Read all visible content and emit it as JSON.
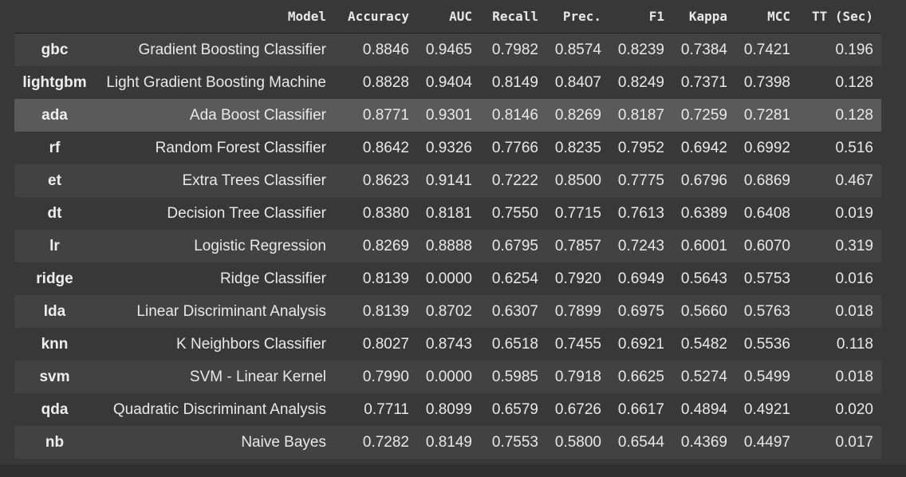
{
  "table": {
    "columns": [
      "Model",
      "Accuracy",
      "AUC",
      "Recall",
      "Prec.",
      "F1",
      "Kappa",
      "MCC",
      "TT (Sec)"
    ],
    "hovered_row": 2,
    "rows": [
      {
        "id": "gbc",
        "model": "Gradient Boosting Classifier",
        "values": [
          "0.8846",
          "0.9465",
          "0.7982",
          "0.8574",
          "0.8239",
          "0.7384",
          "0.7421",
          "0.196"
        ]
      },
      {
        "id": "lightgbm",
        "model": "Light Gradient Boosting Machine",
        "values": [
          "0.8828",
          "0.9404",
          "0.8149",
          "0.8407",
          "0.8249",
          "0.7371",
          "0.7398",
          "0.128"
        ]
      },
      {
        "id": "ada",
        "model": "Ada Boost Classifier",
        "values": [
          "0.8771",
          "0.9301",
          "0.8146",
          "0.8269",
          "0.8187",
          "0.7259",
          "0.7281",
          "0.128"
        ]
      },
      {
        "id": "rf",
        "model": "Random Forest Classifier",
        "values": [
          "0.8642",
          "0.9326",
          "0.7766",
          "0.8235",
          "0.7952",
          "0.6942",
          "0.6992",
          "0.516"
        ]
      },
      {
        "id": "et",
        "model": "Extra Trees Classifier",
        "values": [
          "0.8623",
          "0.9141",
          "0.7222",
          "0.8500",
          "0.7775",
          "0.6796",
          "0.6869",
          "0.467"
        ]
      },
      {
        "id": "dt",
        "model": "Decision Tree Classifier",
        "values": [
          "0.8380",
          "0.8181",
          "0.7550",
          "0.7715",
          "0.7613",
          "0.6389",
          "0.6408",
          "0.019"
        ]
      },
      {
        "id": "lr",
        "model": "Logistic Regression",
        "values": [
          "0.8269",
          "0.8888",
          "0.6795",
          "0.7857",
          "0.7243",
          "0.6001",
          "0.6070",
          "0.319"
        ]
      },
      {
        "id": "ridge",
        "model": "Ridge Classifier",
        "values": [
          "0.8139",
          "0.0000",
          "0.6254",
          "0.7920",
          "0.6949",
          "0.5643",
          "0.5753",
          "0.016"
        ]
      },
      {
        "id": "lda",
        "model": "Linear Discriminant Analysis",
        "values": [
          "0.8139",
          "0.8702",
          "0.6307",
          "0.7899",
          "0.6975",
          "0.5660",
          "0.5763",
          "0.018"
        ]
      },
      {
        "id": "knn",
        "model": "K Neighbors Classifier",
        "values": [
          "0.8027",
          "0.8743",
          "0.6518",
          "0.7455",
          "0.6921",
          "0.5482",
          "0.5536",
          "0.118"
        ]
      },
      {
        "id": "svm",
        "model": "SVM - Linear Kernel",
        "values": [
          "0.7990",
          "0.0000",
          "0.5985",
          "0.7918",
          "0.6625",
          "0.5274",
          "0.5499",
          "0.018"
        ]
      },
      {
        "id": "qda",
        "model": "Quadratic Discriminant Analysis",
        "values": [
          "0.7711",
          "0.8099",
          "0.6579",
          "0.6726",
          "0.6617",
          "0.4894",
          "0.4921",
          "0.020"
        ]
      },
      {
        "id": "nb",
        "model": "Naive Bayes",
        "values": [
          "0.7282",
          "0.8149",
          "0.7553",
          "0.5800",
          "0.6544",
          "0.4369",
          "0.4497",
          "0.017"
        ]
      }
    ]
  }
}
